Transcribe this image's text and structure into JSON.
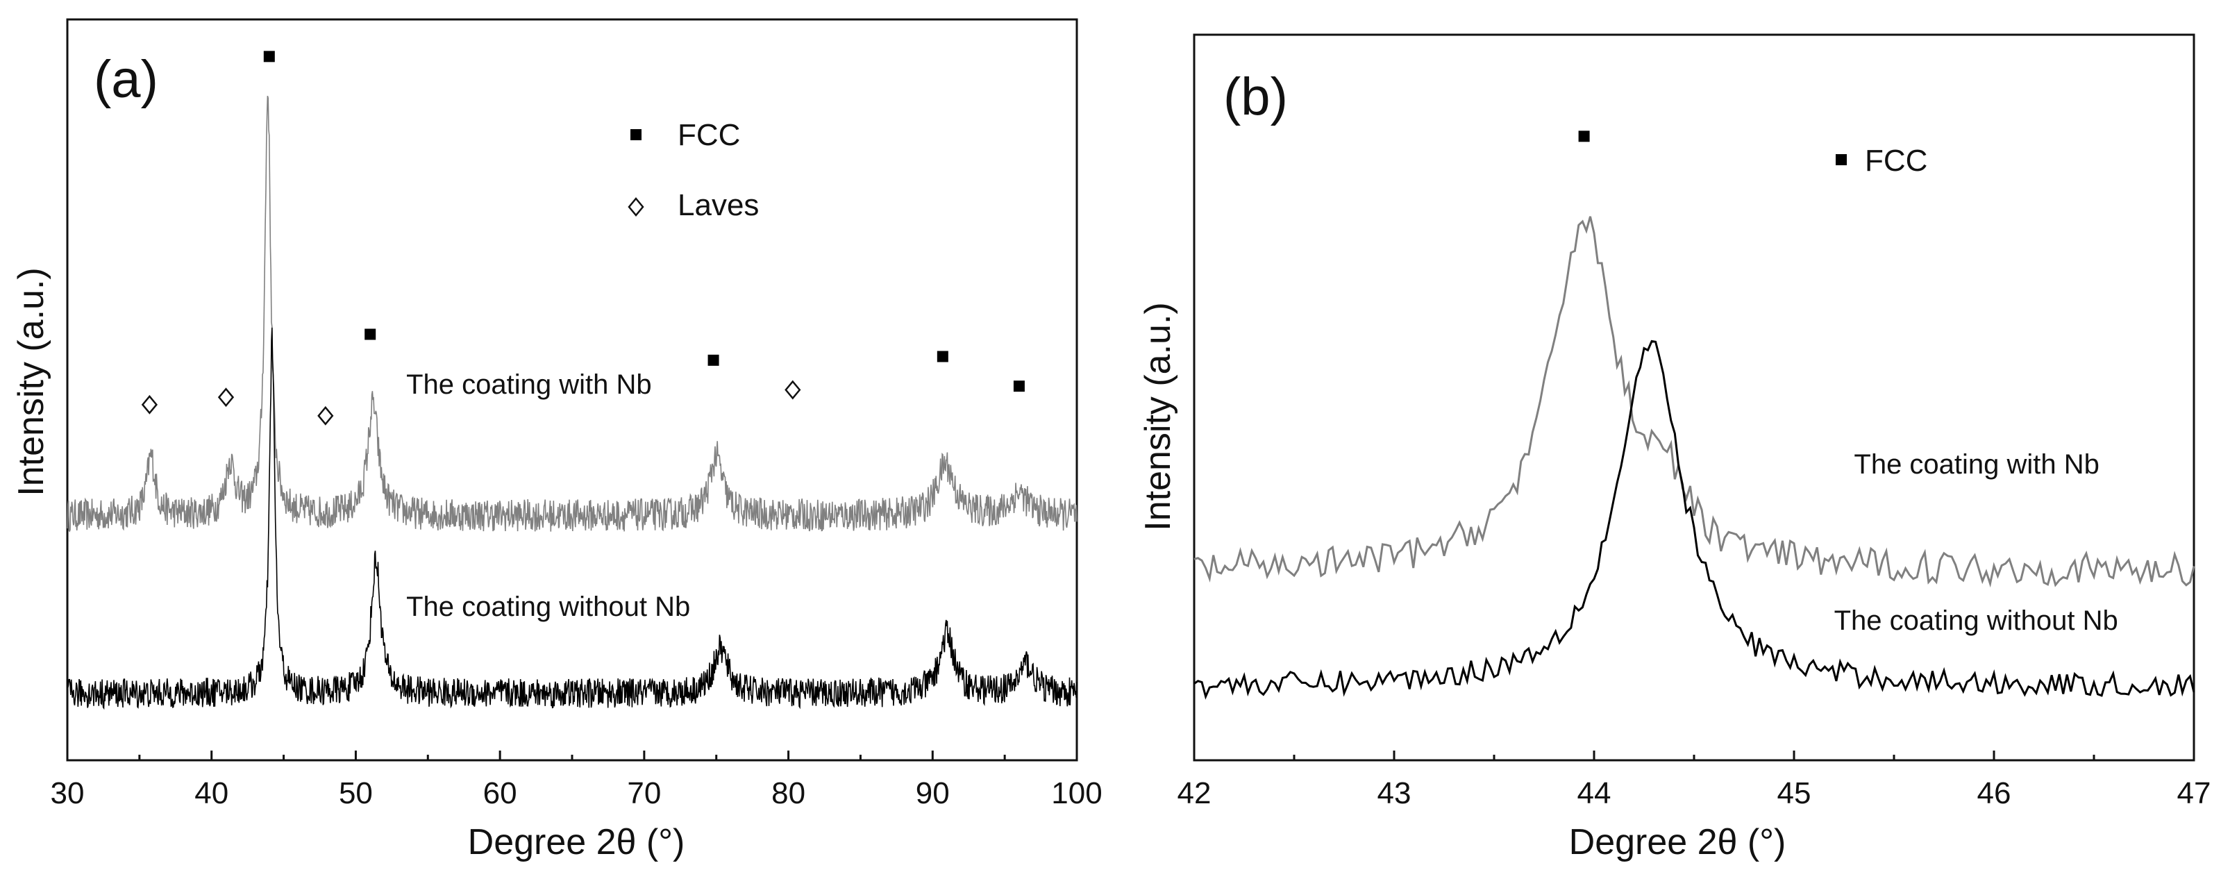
{
  "chart_data": [
    {
      "panel": "(a)",
      "type": "line",
      "xlabel": "Degree 2θ (°)",
      "ylabel": "Intensity (a.u.)",
      "xlim": [
        30,
        100
      ],
      "ylim": [
        0,
        100
      ],
      "xticks": [
        30,
        40,
        50,
        60,
        70,
        80,
        90,
        100
      ],
      "yticks_shown": false,
      "legend": {
        "position": "top-right",
        "entries": [
          {
            "marker": "filled-square",
            "label": "FCC"
          },
          {
            "marker": "open-diamond",
            "label": "Laves"
          }
        ]
      },
      "series": [
        {
          "name": "The coating with Nb",
          "color": "#808080",
          "baseline": 33,
          "noise": 2.2,
          "peaks": [
            {
              "x": 35.8,
              "h": 8,
              "w": 0.35
            },
            {
              "x": 41.3,
              "h": 7,
              "w": 0.4
            },
            {
              "x": 43.9,
              "h": 57,
              "w": 0.25
            },
            {
              "x": 51.2,
              "h": 15,
              "w": 0.45
            },
            {
              "x": 75.0,
              "h": 8,
              "w": 0.55
            },
            {
              "x": 90.9,
              "h": 7,
              "w": 0.7
            },
            {
              "x": 96.0,
              "h": 3,
              "w": 0.7
            }
          ]
        },
        {
          "name": "The coating without Nb",
          "color": "#000000",
          "baseline": 9,
          "noise": 2.0,
          "peaks": [
            {
              "x": 44.2,
              "h": 48,
              "w": 0.22
            },
            {
              "x": 51.4,
              "h": 18,
              "w": 0.4
            },
            {
              "x": 75.3,
              "h": 6,
              "w": 0.6
            },
            {
              "x": 91.0,
              "h": 8,
              "w": 0.6
            },
            {
              "x": 96.5,
              "h": 4,
              "w": 0.6
            }
          ]
        }
      ],
      "annotations": [
        {
          "type": "fcc-marker",
          "x": 44.0,
          "y": 95
        },
        {
          "type": "fcc-marker",
          "x": 51.0,
          "y": 57.5
        },
        {
          "type": "fcc-marker",
          "x": 74.8,
          "y": 54
        },
        {
          "type": "fcc-marker",
          "x": 90.7,
          "y": 54.5
        },
        {
          "type": "fcc-marker",
          "x": 96.0,
          "y": 50.5
        },
        {
          "type": "laves-marker",
          "x": 35.7,
          "y": 48
        },
        {
          "type": "laves-marker",
          "x": 41.0,
          "y": 49
        },
        {
          "type": "laves-marker",
          "x": 47.9,
          "y": 46.5
        },
        {
          "type": "laves-marker",
          "x": 80.3,
          "y": 50
        }
      ],
      "labels": [
        {
          "text": "The coating with Nb",
          "x": 53.5,
          "y": 49.5
        },
        {
          "text": "The coating without Nb",
          "x": 53.5,
          "y": 19.5
        }
      ]
    },
    {
      "panel": "(b)",
      "type": "line",
      "xlabel": "Degree 2θ (°)",
      "ylabel": "Intensity (a.u.)",
      "xlim": [
        42,
        47
      ],
      "ylim": [
        0,
        100
      ],
      "xticks": [
        42,
        43,
        44,
        45,
        46,
        47
      ],
      "yticks_shown": false,
      "legend": {
        "position": "top-right",
        "entries": [
          {
            "marker": "filled-square",
            "label": "FCC"
          }
        ]
      },
      "series": [
        {
          "name": "The coating with Nb",
          "color": "#808080",
          "baseline": 26,
          "noise": 2.2,
          "peaks": [
            {
              "x": 43.95,
              "h": 48,
              "w": 0.2
            },
            {
              "x": 44.35,
              "h": 8,
              "w": 0.12
            }
          ]
        },
        {
          "name": "The coating without Nb",
          "color": "#000000",
          "baseline": 10,
          "noise": 1.6,
          "peaks": [
            {
              "x": 44.28,
              "h": 47,
              "w": 0.2
            }
          ]
        }
      ],
      "annotations": [
        {
          "type": "fcc-marker",
          "x": 43.95,
          "y": 86
        }
      ],
      "labels": [
        {
          "text": "The coating with Nb",
          "x": 45.3,
          "y": 39.5
        },
        {
          "text": "The coating without Nb",
          "x": 45.2,
          "y": 18
        }
      ]
    }
  ]
}
